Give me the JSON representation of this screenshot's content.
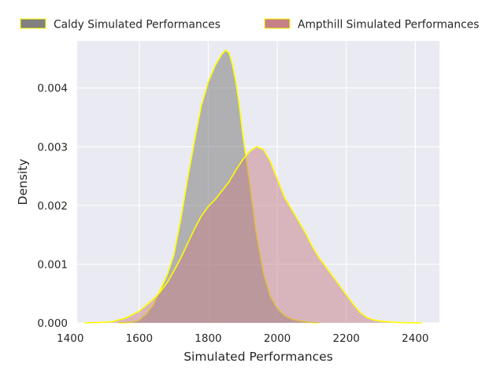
{
  "chart_data": {
    "type": "area",
    "xlabel": "Simulated Performances",
    "ylabel": "Density",
    "xlim": [
      1420,
      2470
    ],
    "ylim": [
      0,
      0.0048
    ],
    "x_ticks": [
      1400,
      1600,
      1800,
      2000,
      2200,
      2400
    ],
    "x_tick_labels": [
      "1400",
      "1600",
      "1800",
      "2000",
      "2200",
      "2400"
    ],
    "y_ticks": [
      0,
      0.001,
      0.002,
      0.003,
      0.004
    ],
    "y_tick_labels": [
      "0.000",
      "0.001",
      "0.002",
      "0.003",
      "0.004"
    ],
    "grid": true,
    "legend_position": "top",
    "outline_color": "#ffff00",
    "background_color": "#eaeaf2",
    "series": [
      {
        "name": "Caldy Simulated Performances",
        "color": "#808080",
        "x": [
          1540,
          1580,
          1600,
          1620,
          1640,
          1660,
          1680,
          1700,
          1720,
          1740,
          1760,
          1780,
          1800,
          1820,
          1840,
          1850,
          1860,
          1870,
          1880,
          1890,
          1900,
          1920,
          1940,
          1960,
          1980,
          2000,
          2020,
          2040,
          2060,
          2080,
          2100,
          2120
        ],
        "y": [
          0,
          1e-05,
          5e-05,
          0.00015,
          0.0003,
          0.00055,
          0.0008,
          0.00115,
          0.00175,
          0.00245,
          0.0031,
          0.0037,
          0.0041,
          0.00438,
          0.00458,
          0.00464,
          0.0046,
          0.0044,
          0.0041,
          0.0037,
          0.0032,
          0.0024,
          0.0015,
          0.00085,
          0.00045,
          0.00025,
          0.00013,
          7e-05,
          4e-05,
          2e-05,
          5e-06,
          0
        ]
      },
      {
        "name": "Ampthill Simulated Performances",
        "color": "#c67f86",
        "x": [
          1440,
          1480,
          1520,
          1560,
          1600,
          1620,
          1640,
          1660,
          1680,
          1700,
          1720,
          1740,
          1760,
          1780,
          1800,
          1820,
          1840,
          1860,
          1880,
          1900,
          1920,
          1940,
          1960,
          1980,
          2000,
          2020,
          2040,
          2060,
          2080,
          2100,
          2120,
          2140,
          2160,
          2180,
          2200,
          2220,
          2240,
          2260,
          2280,
          2300,
          2340,
          2380,
          2420
        ],
        "y": [
          0,
          5e-06,
          2e-05,
          8e-05,
          0.0002,
          0.0003,
          0.0004,
          0.00052,
          0.00068,
          0.00088,
          0.0011,
          0.00135,
          0.0016,
          0.00182,
          0.00198,
          0.0021,
          0.00225,
          0.0024,
          0.0026,
          0.00278,
          0.00292,
          0.003,
          0.00295,
          0.00275,
          0.00245,
          0.00215,
          0.00195,
          0.00175,
          0.00155,
          0.00132,
          0.00112,
          0.00096,
          0.0008,
          0.00064,
          0.00048,
          0.00032,
          0.00018,
          9e-05,
          5e-05,
          3e-05,
          1e-05,
          3e-06,
          0
        ]
      }
    ]
  }
}
